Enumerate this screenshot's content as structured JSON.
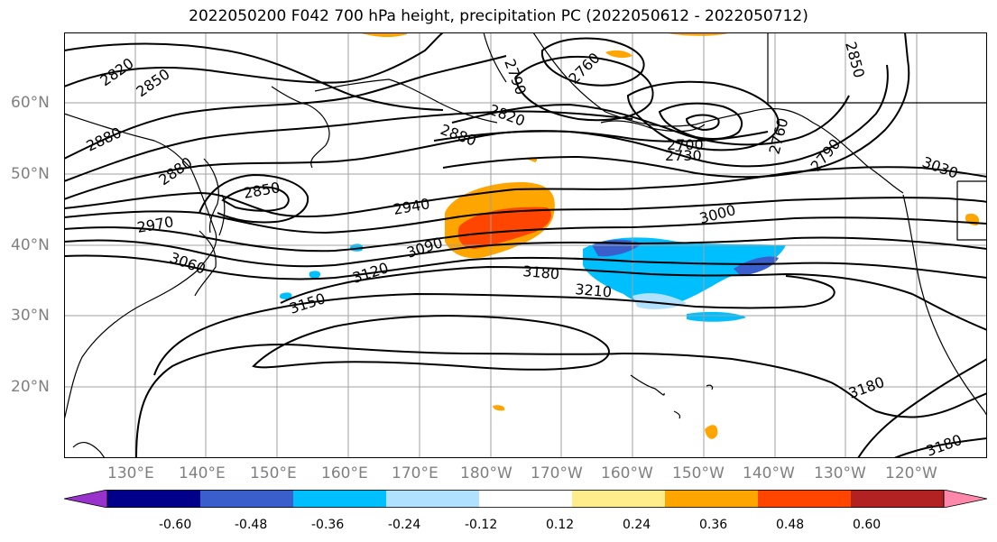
{
  "title": "2022050200 F042 700 hPa height, precipitation PC (2022050612 - 2022050712)",
  "map": {
    "lat_labels": [
      "60°N",
      "50°N",
      "40°N",
      "30°N",
      "20°N"
    ],
    "lon_labels": [
      "130°E",
      "140°E",
      "150°E",
      "160°E",
      "170°E",
      "180°W",
      "170°W",
      "160°W",
      "150°W",
      "140°W",
      "130°W",
      "120°W"
    ],
    "contour_labels": [
      {
        "text": "2820"
      },
      {
        "text": "2850"
      },
      {
        "text": "2880"
      },
      {
        "text": "2880"
      },
      {
        "text": "2850"
      },
      {
        "text": "2970"
      },
      {
        "text": "3060"
      },
      {
        "text": "2940"
      },
      {
        "text": "3090"
      },
      {
        "text": "3120"
      },
      {
        "text": "3150"
      },
      {
        "text": "2790"
      },
      {
        "text": "2760"
      },
      {
        "text": "2820"
      },
      {
        "text": "2880"
      },
      {
        "text": "2700"
      },
      {
        "text": "2730"
      },
      {
        "text": "2760"
      },
      {
        "text": "3000"
      },
      {
        "text": "3180"
      },
      {
        "text": "3210"
      },
      {
        "text": "3030"
      },
      {
        "text": "3180"
      },
      {
        "text": "3180"
      },
      {
        "text": "2850"
      },
      {
        "text": "2790"
      }
    ]
  },
  "colorbar": {
    "tick_labels": [
      "-0.60",
      "-0.48",
      "-0.36",
      "-0.24",
      "-0.12",
      "0.12",
      "0.24",
      "0.36",
      "0.48",
      "0.60"
    ],
    "colors": [
      "#9932cc",
      "#00008b",
      "#3a5fcd",
      "#00bfff",
      "#b0e2ff",
      "#ffffff",
      "#ffec8b",
      "#ffa500",
      "#ff4500",
      "#b22222",
      "#ff88aa"
    ]
  },
  "colors": {
    "coast": "#000000",
    "grid": "#a0a0a0",
    "contour": "#000000"
  }
}
